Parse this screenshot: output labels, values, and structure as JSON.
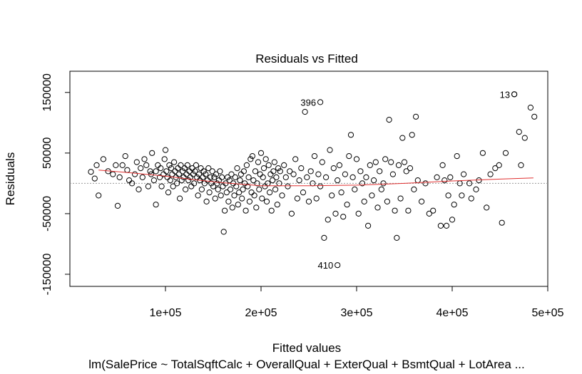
{
  "chart_data": {
    "type": "scatter",
    "title": "Residuals vs Fitted",
    "xlabel": "Fitted values",
    "ylabel": "Residuals",
    "subtitle": "lm(SalePrice ~ TotalSqftCalc + OverallQual + ExterQual + BsmtQual + LotArea ...",
    "xlim": [
      0,
      500000
    ],
    "ylim": [
      -170000,
      185000
    ],
    "x_ticks": [
      100000,
      200000,
      300000,
      400000,
      500000
    ],
    "x_tick_labels": [
      "1e+05",
      "2e+05",
      "3e+05",
      "4e+05",
      "5e+05"
    ],
    "y_ticks": [
      -150000,
      -50000,
      50000,
      150000
    ],
    "y_tick_labels": [
      "-150000",
      "-50000",
      "50000",
      "150000"
    ],
    "reference_line_y": 0,
    "outliers": [
      {
        "label": "13",
        "x": 465000,
        "y": 147000
      },
      {
        "label": "396",
        "x": 262000,
        "y": 134000
      },
      {
        "label": "410",
        "x": 280000,
        "y": -135000
      }
    ],
    "smoother": {
      "color": "#e03030",
      "points": [
        [
          30000,
          22000
        ],
        [
          60000,
          18000
        ],
        [
          100000,
          12000
        ],
        [
          130000,
          6000
        ],
        [
          160000,
          1000
        ],
        [
          200000,
          -4000
        ],
        [
          250000,
          -4000
        ],
        [
          300000,
          -3000
        ],
        [
          350000,
          0
        ],
        [
          400000,
          4000
        ],
        [
          450000,
          7000
        ],
        [
          485000,
          9000
        ]
      ]
    },
    "points": [
      [
        22000,
        19000
      ],
      [
        26000,
        8000
      ],
      [
        28000,
        30000
      ],
      [
        30000,
        -20000
      ],
      [
        35000,
        40000
      ],
      [
        40000,
        20000
      ],
      [
        45000,
        15000
      ],
      [
        48000,
        30000
      ],
      [
        50000,
        -37000
      ],
      [
        52000,
        10000
      ],
      [
        55000,
        30000
      ],
      [
        58000,
        45000
      ],
      [
        60000,
        22000
      ],
      [
        62000,
        5000
      ],
      [
        65000,
        0
      ],
      [
        68000,
        15000
      ],
      [
        70000,
        35000
      ],
      [
        72000,
        -10000
      ],
      [
        74000,
        25000
      ],
      [
        76000,
        10000
      ],
      [
        78000,
        40000
      ],
      [
        80000,
        30000
      ],
      [
        82000,
        -5000
      ],
      [
        84000,
        20000
      ],
      [
        85000,
        15000
      ],
      [
        86000,
        50000
      ],
      [
        88000,
        5000
      ],
      [
        90000,
        20000
      ],
      [
        90000,
        -35000
      ],
      [
        92000,
        30000
      ],
      [
        94000,
        10000
      ],
      [
        95000,
        25000
      ],
      [
        96000,
        -5000
      ],
      [
        98000,
        15000
      ],
      [
        99000,
        40000
      ],
      [
        100000,
        55000
      ],
      [
        101000,
        20000
      ],
      [
        102000,
        10000
      ],
      [
        103000,
        -15000
      ],
      [
        104000,
        30000
      ],
      [
        105000,
        5000
      ],
      [
        106000,
        25000
      ],
      [
        107000,
        15000
      ],
      [
        108000,
        -5000
      ],
      [
        109000,
        35000
      ],
      [
        110000,
        20000
      ],
      [
        111000,
        10000
      ],
      [
        112000,
        0
      ],
      [
        113000,
        25000
      ],
      [
        114000,
        15000
      ],
      [
        115000,
        -25000
      ],
      [
        116000,
        30000
      ],
      [
        117000,
        5000
      ],
      [
        118000,
        20000
      ],
      [
        119000,
        10000
      ],
      [
        120000,
        25000
      ],
      [
        121000,
        -10000
      ],
      [
        122000,
        15000
      ],
      [
        123000,
        30000
      ],
      [
        124000,
        5000
      ],
      [
        125000,
        20000
      ],
      [
        126000,
        10000
      ],
      [
        127000,
        -5000
      ],
      [
        128000,
        25000
      ],
      [
        129000,
        15000
      ],
      [
        130000,
        0
      ],
      [
        131000,
        20000
      ],
      [
        132000,
        30000
      ],
      [
        133000,
        10000
      ],
      [
        134000,
        -20000
      ],
      [
        135000,
        15000
      ],
      [
        136000,
        5000
      ],
      [
        137000,
        25000
      ],
      [
        138000,
        -10000
      ],
      [
        139000,
        10000
      ],
      [
        140000,
        20000
      ],
      [
        141000,
        0
      ],
      [
        142000,
        15000
      ],
      [
        143000,
        -30000
      ],
      [
        144000,
        5000
      ],
      [
        145000,
        25000
      ],
      [
        146000,
        -15000
      ],
      [
        147000,
        10000
      ],
      [
        148000,
        0
      ],
      [
        149000,
        20000
      ],
      [
        150000,
        -5000
      ],
      [
        151000,
        10000
      ],
      [
        152000,
        -25000
      ],
      [
        153000,
        15000
      ],
      [
        154000,
        0
      ],
      [
        155000,
        -10000
      ],
      [
        156000,
        5000
      ],
      [
        157000,
        20000
      ],
      [
        158000,
        -20000
      ],
      [
        159000,
        10000
      ],
      [
        160000,
        -5000
      ],
      [
        161000,
        -80000
      ],
      [
        162000,
        -45000
      ],
      [
        163000,
        0
      ],
      [
        164000,
        -15000
      ],
      [
        165000,
        10000
      ],
      [
        166000,
        -30000
      ],
      [
        167000,
        5000
      ],
      [
        168000,
        -10000
      ],
      [
        169000,
        15000
      ],
      [
        170000,
        -40000
      ],
      [
        171000,
        0
      ],
      [
        172000,
        -20000
      ],
      [
        173000,
        10000
      ],
      [
        174000,
        -5000
      ],
      [
        175000,
        25000
      ],
      [
        176000,
        -35000
      ],
      [
        177000,
        -15000
      ],
      [
        178000,
        5000
      ],
      [
        179000,
        15000
      ],
      [
        180000,
        -25000
      ],
      [
        181000,
        -10000
      ],
      [
        182000,
        20000
      ],
      [
        183000,
        0
      ],
      [
        184000,
        -45000
      ],
      [
        185000,
        30000
      ],
      [
        186000,
        -5000
      ],
      [
        187000,
        10000
      ],
      [
        188000,
        -30000
      ],
      [
        189000,
        40000
      ],
      [
        190000,
        -15000
      ],
      [
        191000,
        45000
      ],
      [
        192000,
        5000
      ],
      [
        193000,
        -20000
      ],
      [
        194000,
        20000
      ],
      [
        195000,
        -40000
      ],
      [
        196000,
        0
      ],
      [
        197000,
        35000
      ],
      [
        198000,
        -10000
      ],
      [
        199000,
        15000
      ],
      [
        200000,
        50000
      ],
      [
        201000,
        -25000
      ],
      [
        202000,
        10000
      ],
      [
        203000,
        25000
      ],
      [
        204000,
        -5000
      ],
      [
        205000,
        40000
      ],
      [
        206000,
        -30000
      ],
      [
        207000,
        0
      ],
      [
        208000,
        30000
      ],
      [
        209000,
        -15000
      ],
      [
        210000,
        15000
      ],
      [
        211000,
        -45000
      ],
      [
        212000,
        5000
      ],
      [
        213000,
        20000
      ],
      [
        214000,
        35000
      ],
      [
        215000,
        -10000
      ],
      [
        216000,
        10000
      ],
      [
        217000,
        -35000
      ],
      [
        218000,
        25000
      ],
      [
        219000,
        0
      ],
      [
        220000,
        20000
      ],
      [
        222000,
        -20000
      ],
      [
        224000,
        30000
      ],
      [
        226000,
        10000
      ],
      [
        228000,
        -5000
      ],
      [
        230000,
        20000
      ],
      [
        232000,
        -50000
      ],
      [
        234000,
        15000
      ],
      [
        236000,
        40000
      ],
      [
        238000,
        -25000
      ],
      [
        240000,
        5000
      ],
      [
        242000,
        25000
      ],
      [
        244000,
        -15000
      ],
      [
        246000,
        118000
      ],
      [
        248000,
        10000
      ],
      [
        250000,
        -30000
      ],
      [
        252000,
        20000
      ],
      [
        254000,
        0
      ],
      [
        256000,
        45000
      ],
      [
        258000,
        -25000
      ],
      [
        260000,
        15000
      ],
      [
        262000,
        -5000
      ],
      [
        264000,
        35000
      ],
      [
        266000,
        -90000
      ],
      [
        268000,
        10000
      ],
      [
        270000,
        -60000
      ],
      [
        272000,
        55000
      ],
      [
        274000,
        -20000
      ],
      [
        276000,
        25000
      ],
      [
        278000,
        -50000
      ],
      [
        280000,
        5000
      ],
      [
        282000,
        30000
      ],
      [
        284000,
        -15000
      ],
      [
        286000,
        -55000
      ],
      [
        288000,
        15000
      ],
      [
        290000,
        -35000
      ],
      [
        292000,
        45000
      ],
      [
        294000,
        80000
      ],
      [
        296000,
        10000
      ],
      [
        298000,
        -10000
      ],
      [
        300000,
        40000
      ],
      [
        302000,
        -50000
      ],
      [
        304000,
        20000
      ],
      [
        306000,
        0
      ],
      [
        308000,
        -30000
      ],
      [
        310000,
        10000
      ],
      [
        312000,
        -70000
      ],
      [
        314000,
        30000
      ],
      [
        316000,
        -20000
      ],
      [
        318000,
        5000
      ],
      [
        320000,
        35000
      ],
      [
        322000,
        -40000
      ],
      [
        324000,
        20000
      ],
      [
        326000,
        -10000
      ],
      [
        328000,
        0
      ],
      [
        330000,
        40000
      ],
      [
        332000,
        -30000
      ],
      [
        334000,
        105000
      ],
      [
        336000,
        35000
      ],
      [
        338000,
        15000
      ],
      [
        340000,
        -45000
      ],
      [
        342000,
        -90000
      ],
      [
        344000,
        30000
      ],
      [
        346000,
        -25000
      ],
      [
        348000,
        75000
      ],
      [
        350000,
        35000
      ],
      [
        352000,
        20000
      ],
      [
        354000,
        -45000
      ],
      [
        356000,
        25000
      ],
      [
        358000,
        80000
      ],
      [
        360000,
        -10000
      ],
      [
        362000,
        110000
      ],
      [
        364000,
        5000
      ],
      [
        368000,
        -30000
      ],
      [
        372000,
        0
      ],
      [
        376000,
        -50000
      ],
      [
        380000,
        -45000
      ],
      [
        384000,
        10000
      ],
      [
        388000,
        -70000
      ],
      [
        390000,
        30000
      ],
      [
        392000,
        5000
      ],
      [
        394000,
        -70000
      ],
      [
        396000,
        -20000
      ],
      [
        398000,
        10000
      ],
      [
        400000,
        -60000
      ],
      [
        402000,
        -35000
      ],
      [
        405000,
        45000
      ],
      [
        408000,
        0
      ],
      [
        410000,
        -20000
      ],
      [
        412000,
        15000
      ],
      [
        418000,
        0
      ],
      [
        420000,
        -25000
      ],
      [
        425000,
        -10000
      ],
      [
        428000,
        5000
      ],
      [
        432000,
        50000
      ],
      [
        436000,
        -40000
      ],
      [
        440000,
        15000
      ],
      [
        445000,
        25000
      ],
      [
        449000,
        30000
      ],
      [
        452000,
        -65000
      ],
      [
        456000,
        50000
      ],
      [
        465000,
        147000
      ],
      [
        470000,
        85000
      ],
      [
        472000,
        30000
      ],
      [
        476000,
        75000
      ],
      [
        482000,
        125000
      ],
      [
        486000,
        110000
      ]
    ]
  }
}
